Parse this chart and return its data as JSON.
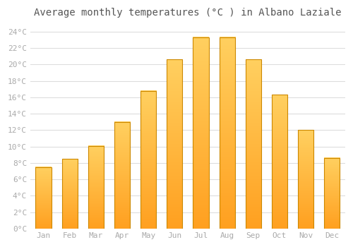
{
  "title": "Average monthly temperatures (°C ) in Albano Laziale",
  "months": [
    "Jan",
    "Feb",
    "Mar",
    "Apr",
    "May",
    "Jun",
    "Jul",
    "Aug",
    "Sep",
    "Oct",
    "Nov",
    "Dec"
  ],
  "values": [
    7.5,
    8.5,
    10.1,
    13.0,
    16.8,
    20.6,
    23.3,
    23.3,
    20.6,
    16.3,
    12.0,
    8.6
  ],
  "bar_color_bottom": "#FFA020",
  "bar_color_top": "#FFD060",
  "bar_edge_color": "#CC8800",
  "ylim": [
    0,
    25
  ],
  "yticks": [
    0,
    2,
    4,
    6,
    8,
    10,
    12,
    14,
    16,
    18,
    20,
    22,
    24
  ],
  "ylabel_suffix": "°C",
  "background_color": "#ffffff",
  "plot_bg_color": "#ffffff",
  "grid_color": "#dddddd",
  "title_fontsize": 10,
  "tick_fontsize": 8,
  "tick_color": "#aaaaaa",
  "bar_width": 0.6
}
